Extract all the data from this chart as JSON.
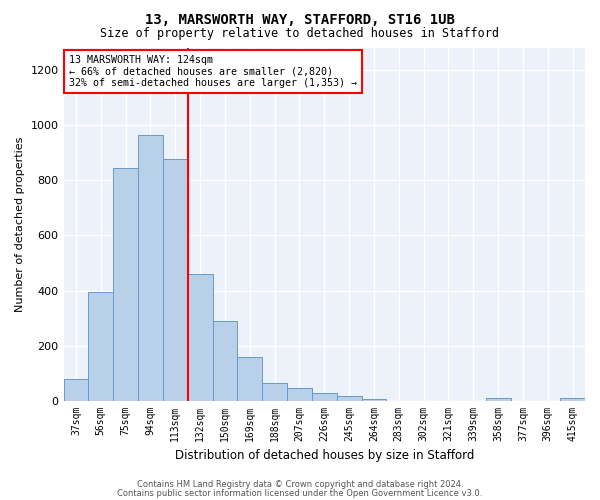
{
  "title": "13, MARSWORTH WAY, STAFFORD, ST16 1UB",
  "subtitle": "Size of property relative to detached houses in Stafford",
  "xlabel": "Distribution of detached houses by size in Stafford",
  "ylabel": "Number of detached properties",
  "bar_color": "#b8d0e8",
  "bar_edge_color": "#6699cc",
  "categories": [
    "37sqm",
    "56sqm",
    "75sqm",
    "94sqm",
    "113sqm",
    "132sqm",
    "150sqm",
    "169sqm",
    "188sqm",
    "207sqm",
    "226sqm",
    "245sqm",
    "264sqm",
    "283sqm",
    "302sqm",
    "321sqm",
    "339sqm",
    "358sqm",
    "377sqm",
    "396sqm",
    "415sqm"
  ],
  "values": [
    80,
    395,
    845,
    965,
    875,
    460,
    290,
    160,
    65,
    48,
    28,
    20,
    8,
    2,
    2,
    2,
    0,
    10,
    0,
    0,
    10
  ],
  "vline_x_index": 4.5,
  "annotation_text_line1": "13 MARSWORTH WAY: 124sqm",
  "annotation_text_line2": "← 66% of detached houses are smaller (2,820)",
  "annotation_text_line3": "32% of semi-detached houses are larger (1,353) →",
  "ylim": [
    0,
    1280
  ],
  "yticks": [
    0,
    200,
    400,
    600,
    800,
    1000,
    1200
  ],
  "footer_line1": "Contains HM Land Registry data © Crown copyright and database right 2024.",
  "footer_line2": "Contains public sector information licensed under the Open Government Licence v3.0.",
  "background_color": "#edf2fa"
}
